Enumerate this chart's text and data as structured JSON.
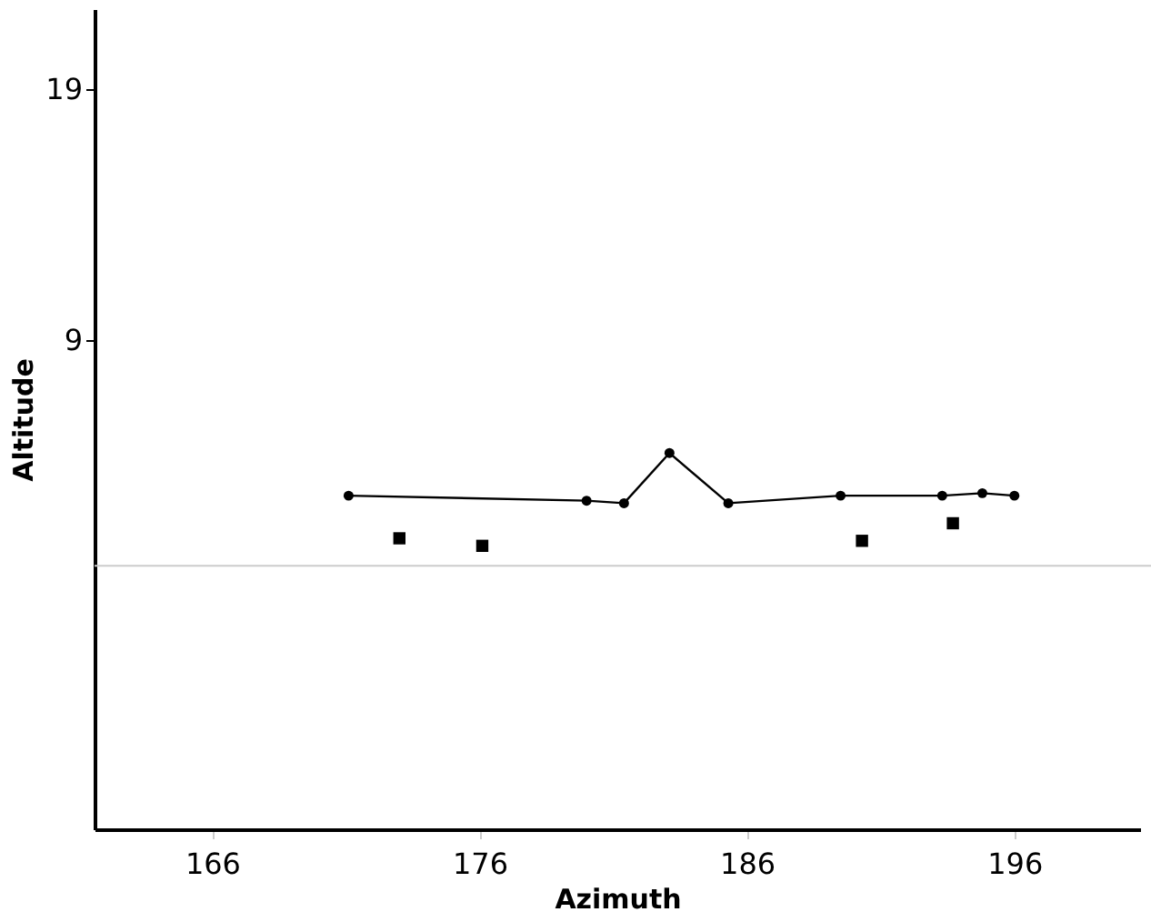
{
  "chart_data": {
    "type": "line",
    "xlabel": "Azimuth",
    "ylabel": "Altitude",
    "xlim": [
      161.6,
      200.7
    ],
    "ylim": [
      -10.5,
      22.2
    ],
    "xticks": [
      166,
      176,
      186,
      196
    ],
    "yticks": [
      9,
      19
    ],
    "legend": false,
    "grid": false,
    "series": [
      {
        "color": "#000000",
        "marker": "circle",
        "line_style": "solid",
        "x": [
          171.1,
          180.0,
          181.4,
          183.1,
          185.3,
          189.5,
          193.3,
          194.8,
          196.0
        ],
        "values": [
          2.8,
          2.6,
          2.5,
          4.5,
          2.5,
          2.8,
          2.8,
          2.9,
          2.8
        ]
      },
      {
        "type": "scatter",
        "color": "#000000",
        "marker": "square",
        "x": [
          173.0,
          176.1,
          190.3,
          193.7
        ],
        "values": [
          1.1,
          0.8,
          1.0,
          1.7
        ]
      }
    ]
  }
}
